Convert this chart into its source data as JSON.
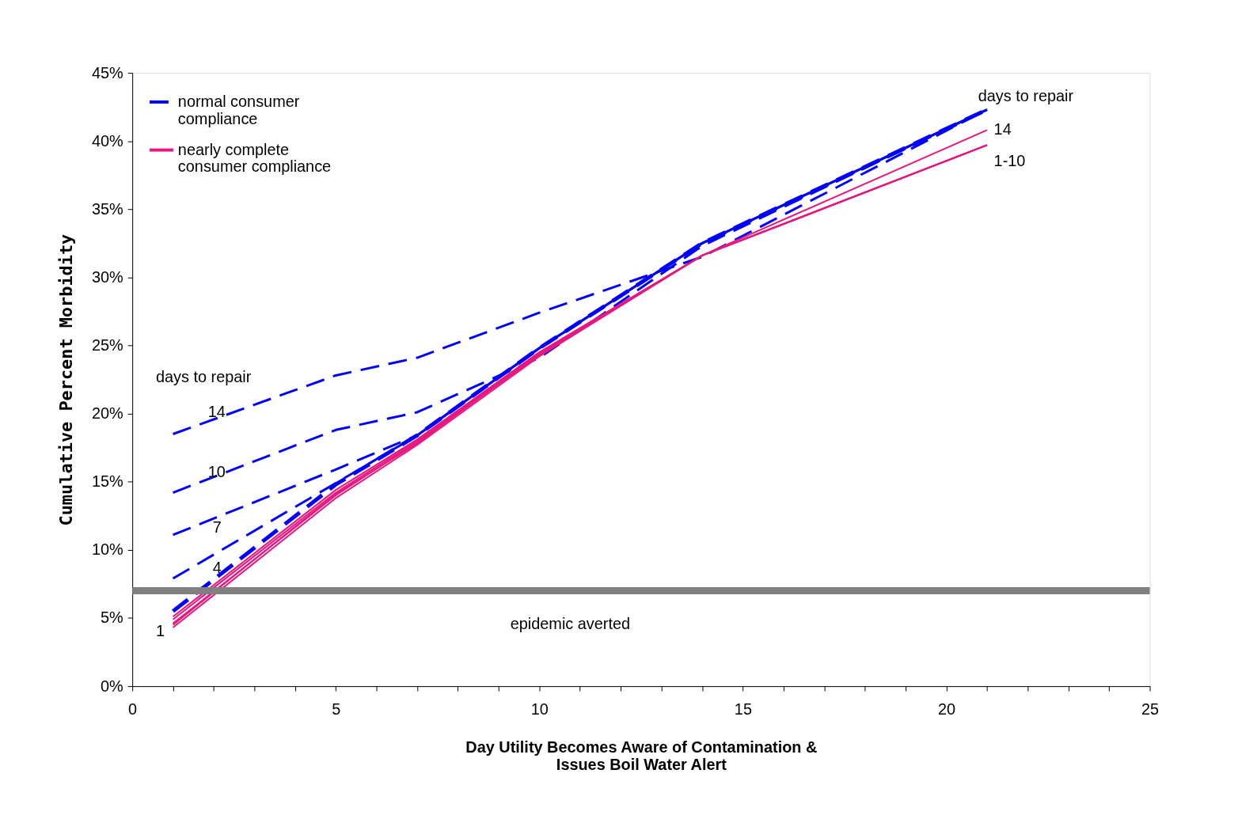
{
  "chart_data": {
    "type": "line",
    "xlabel": "Day Utility Becomes Aware of Contamination & Issues Boil Water Alert",
    "ylabel": "Cumulative Percent Morbidity",
    "xlim": [
      0,
      25
    ],
    "ylim": [
      0,
      45
    ],
    "xticks": [
      0,
      {
        "value": 1,
        "label": null
      },
      {
        "value": 2,
        "label": null
      },
      {
        "value": 3,
        "label": null
      },
      {
        "value": 4,
        "label": null
      },
      5,
      {
        "value": 6,
        "label": null
      },
      {
        "value": 7,
        "label": null
      },
      {
        "value": 8,
        "label": null
      },
      {
        "value": 9,
        "label": null
      },
      10,
      {
        "value": 11,
        "label": null
      },
      {
        "value": 12,
        "label": null
      },
      {
        "value": 13,
        "label": null
      },
      {
        "value": 14,
        "label": null
      },
      15,
      {
        "value": 16,
        "label": null
      },
      {
        "value": 17,
        "label": null
      },
      {
        "value": 18,
        "label": null
      },
      {
        "value": 19,
        "label": null
      },
      20,
      {
        "value": 21,
        "label": null
      },
      {
        "value": 22,
        "label": null
      },
      {
        "value": 23,
        "label": null
      },
      {
        "value": 24,
        "label": null
      },
      25
    ],
    "yticks": [
      {
        "value": 0,
        "label": "0%"
      },
      {
        "value": 5,
        "label": "5%"
      },
      {
        "value": 10,
        "label": "10%"
      },
      {
        "value": 15,
        "label": "15%"
      },
      {
        "value": 20,
        "label": "20%"
      },
      {
        "value": 25,
        "label": "25%"
      },
      {
        "value": 30,
        "label": "30%"
      },
      {
        "value": 35,
        "label": "35%"
      },
      {
        "value": 40,
        "label": "40%"
      },
      {
        "value": 45,
        "label": "45%"
      }
    ],
    "grid": false,
    "legend": "top left",
    "marker": "none",
    "x": [
      1,
      5,
      7,
      10,
      14,
      21
    ],
    "series": [
      {
        "name": "normal consumer compliance",
        "color": "#0000ff",
        "line_style": "dashed",
        "values": [
          5.5,
          14.8,
          18.4,
          24.8,
          32.5,
          42.3
        ]
      },
      {
        "color": "#0000ff",
        "line_style": "dashed",
        "values": [
          7.9,
          14.9,
          18.4,
          24.8,
          32.5,
          42.3
        ]
      },
      {
        "color": "#0000ff",
        "line_style": "dashed",
        "values": [
          11.1,
          15.9,
          18.4,
          24.8,
          32.5,
          42.3
        ]
      },
      {
        "color": "#0000ff",
        "line_style": "dashed",
        "values": [
          14.2,
          18.8,
          20.1,
          24.1,
          32.3,
          42.3
        ]
      },
      {
        "color": "#0000ff",
        "line_style": "dashed",
        "values": [
          18.5,
          22.8,
          24.1,
          27.4,
          31.5,
          42.3
        ]
      },
      {
        "name": "nearly complete consumer compliance",
        "color": "#e8177f",
        "line_style": "solid",
        "values": [
          4.3,
          13.8,
          17.7,
          24.2,
          31.6,
          39.7
        ]
      },
      {
        "color": "#e8177f",
        "line_style": "solid",
        "values": [
          4.6,
          14.0,
          17.9,
          24.3,
          31.6,
          39.7
        ]
      },
      {
        "color": "#e8177f",
        "line_style": "solid",
        "values": [
          4.9,
          14.2,
          18.0,
          24.4,
          31.6,
          39.7
        ]
      },
      {
        "color": "#e8177f",
        "line_style": "solid",
        "values": [
          5.1,
          14.4,
          18.1,
          24.5,
          31.6,
          39.7
        ]
      },
      {
        "color": "#e8177f",
        "line_style": "solid",
        "values": [
          4.5,
          14.1,
          17.8,
          24.4,
          31.6,
          40.8
        ]
      }
    ],
    "ref_lines": [
      {
        "axis": "y",
        "value": 7,
        "color": "#808080"
      }
    ],
    "annotations": [
      "days to repair",
      "14",
      "1-10",
      "days to repair",
      "14",
      "10",
      "7",
      "4",
      "1",
      "epidemic averted"
    ]
  }
}
